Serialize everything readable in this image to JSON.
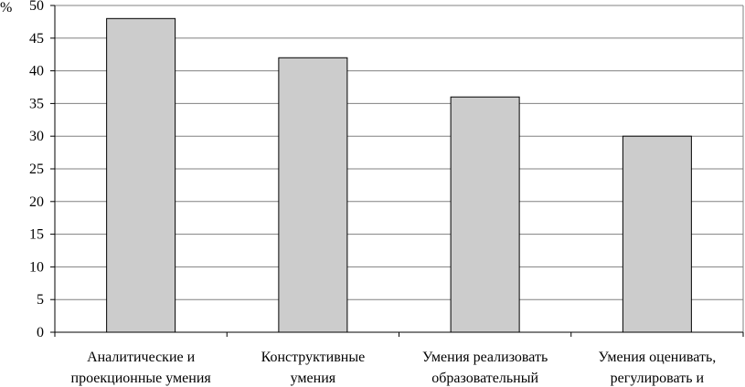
{
  "chart_data": {
    "type": "bar",
    "title": "",
    "xlabel": "",
    "ylabel": "%",
    "ylim": [
      0,
      50
    ],
    "yticks": [
      0,
      5,
      10,
      15,
      20,
      25,
      30,
      35,
      40,
      45,
      50
    ],
    "grid": true,
    "categories": [
      [
        "Аналитические и",
        "проекционные умения"
      ],
      [
        "Конструктивные",
        "умения"
      ],
      [
        "Умения реализовать",
        "образовательный"
      ],
      [
        "Умения оценивать,",
        "регулировать и"
      ]
    ],
    "values": [
      48,
      42,
      36,
      30
    ],
    "bar_color": "#cccccc",
    "grid_color": "#808080"
  }
}
